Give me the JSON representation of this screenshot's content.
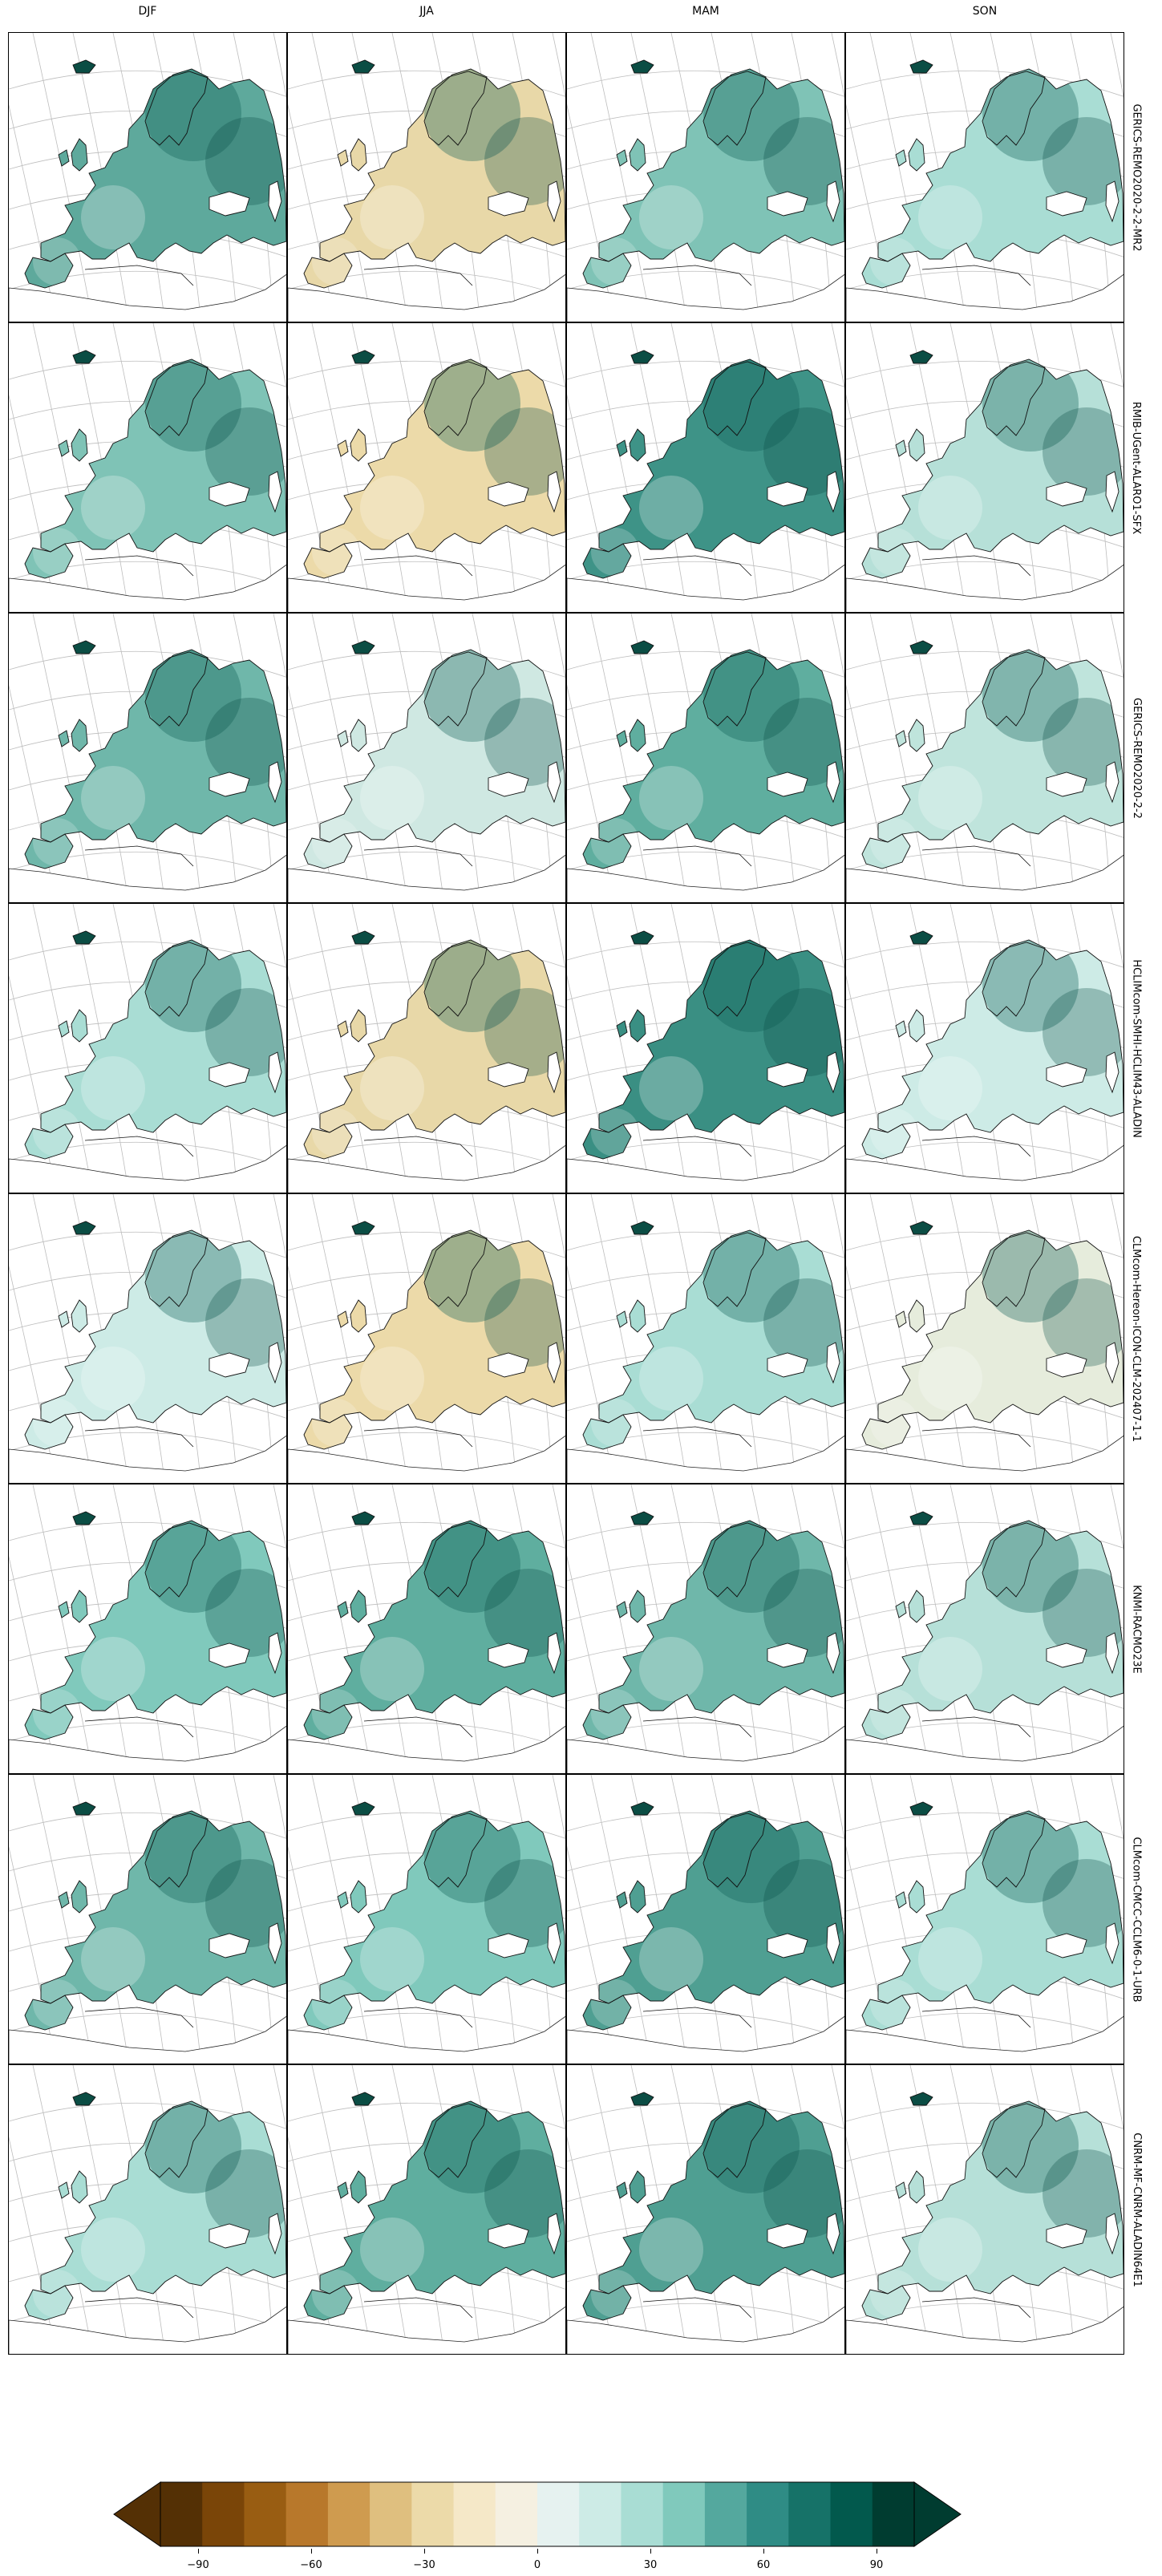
{
  "columns": [
    "DJF",
    "JJA",
    "MAM",
    "SON"
  ],
  "rows": [
    "GERICS-REMO2020-2-2-MR2",
    "RMIB-UGent-ALARO1-SFX",
    "GERICS-REMO2020-2-2",
    "HCLIMcom-SMHI-HCLIM43-ALADIN",
    "CLMcom-Hereon-ICON-CLM-202407-1-1",
    "KNMI-RACMO23E",
    "CLMcom-CMCC-CCLM6-0-1-URB",
    "CNRM-MF-CNRM-ALADIN64E1"
  ],
  "colorbar": {
    "ticks": [
      "−90",
      "−60",
      "−30",
      "0",
      "30",
      "60",
      "90"
    ],
    "tick_values": [
      -90,
      -60,
      -30,
      0,
      30,
      60,
      90
    ],
    "range": [
      -100,
      100
    ],
    "extend": "both",
    "colors": [
      "#543005",
      "#7a4508",
      "#995d12",
      "#b8782b",
      "#cf9b4f",
      "#dfbf7f",
      "#ecdaa9",
      "#f5e8c8",
      "#f5f0e1",
      "#e6f2f0",
      "#cdebe6",
      "#a9ddd4",
      "#80c9bc",
      "#54a89e",
      "#2f8c85",
      "#167268",
      "#02594d",
      "#003c30"
    ]
  },
  "panel_tones": [
    [
      "#5ea99c",
      "#e8d8a8",
      "#7fc3b6",
      "#a9ddd4"
    ],
    [
      "#7fc3b6",
      "#ecdaa9",
      "#3e9387",
      "#b6e0d8"
    ],
    [
      "#6fb7aa",
      "#cfe8e2",
      "#5fae9f",
      "#bfe4dc"
    ],
    [
      "#a9ddd4",
      "#e8d8a8",
      "#3a8f83",
      "#cdebe6"
    ],
    [
      "#cdebe6",
      "#ecdaa9",
      "#a9ddd4",
      "#e6ecdc"
    ],
    [
      "#80c9bc",
      "#5fae9f",
      "#6fb7aa",
      "#b6e0d8"
    ],
    [
      "#6fb7aa",
      "#80c9bc",
      "#4f9f92",
      "#a9ddd4"
    ],
    [
      "#a9ddd4",
      "#5fae9f",
      "#4f9f92",
      "#b6e0d8"
    ]
  ]
}
